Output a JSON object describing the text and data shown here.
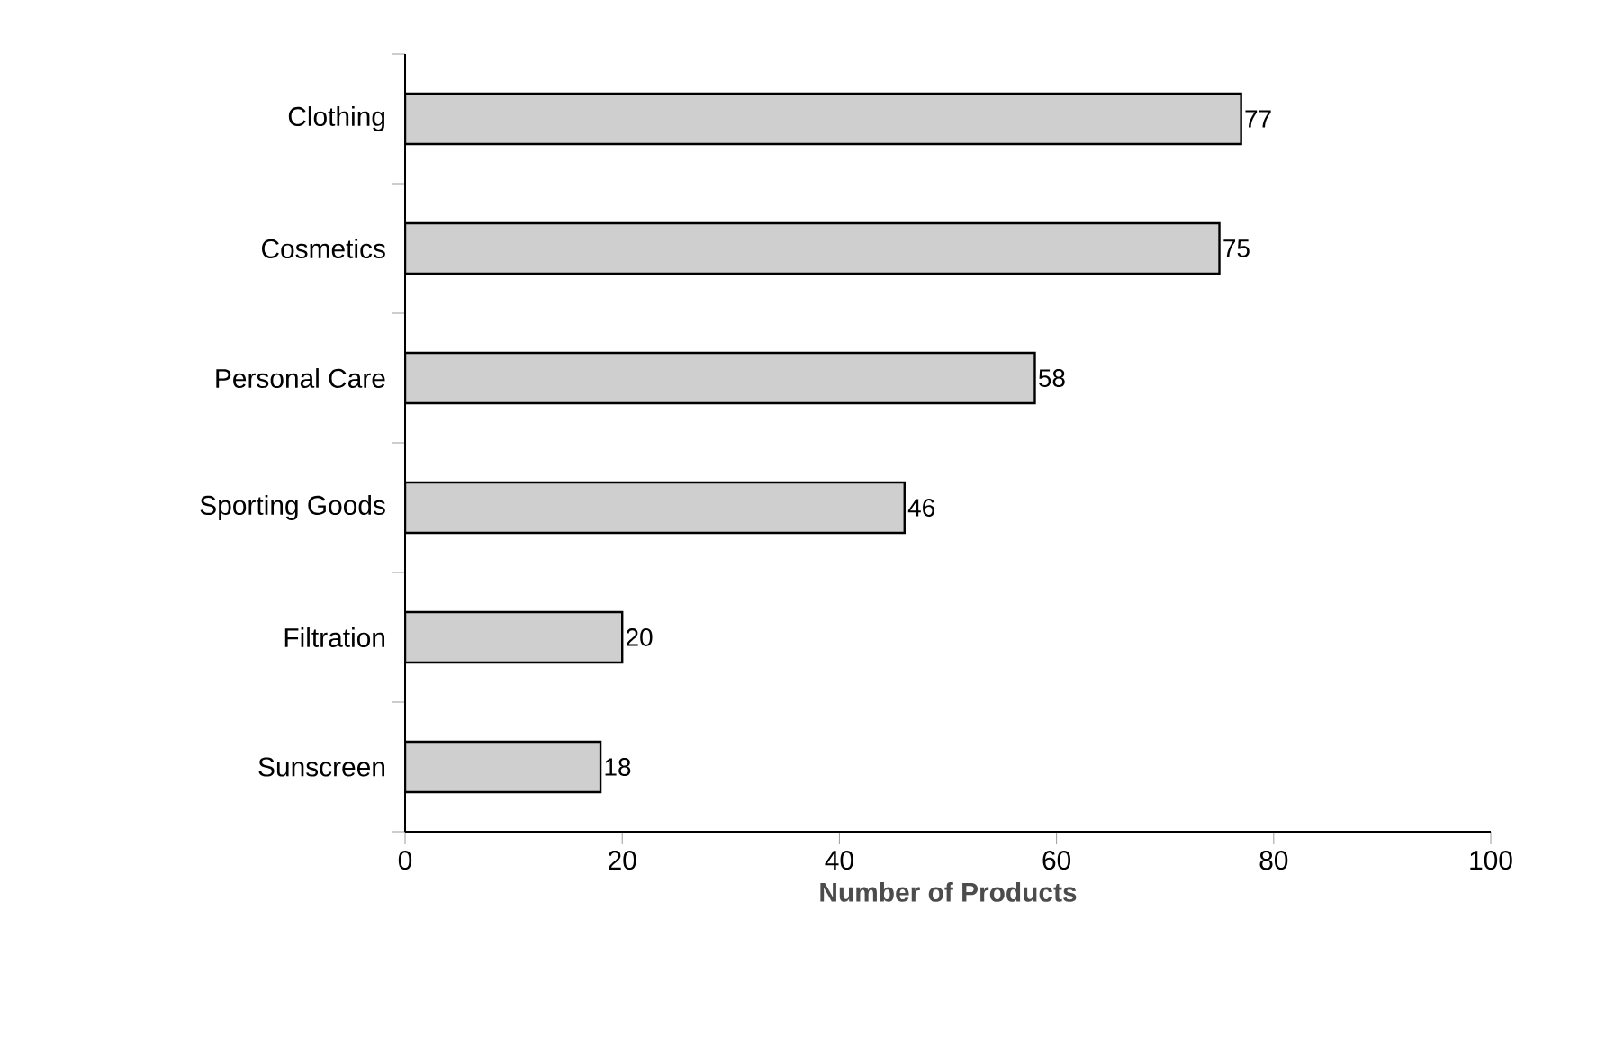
{
  "chart_data": {
    "type": "bar",
    "orientation": "horizontal",
    "categories": [
      "Clothing",
      "Cosmetics",
      "Personal Care",
      "Sporting Goods",
      "Filtration",
      "Sunscreen"
    ],
    "values": [
      77,
      75,
      58,
      46,
      20,
      18
    ],
    "color": "#cfcfcf",
    "xlabel": "Number of Products",
    "xlim": [
      0,
      100
    ],
    "xticks": [
      0,
      20,
      40,
      60,
      80,
      100
    ],
    "data_labels": true
  }
}
